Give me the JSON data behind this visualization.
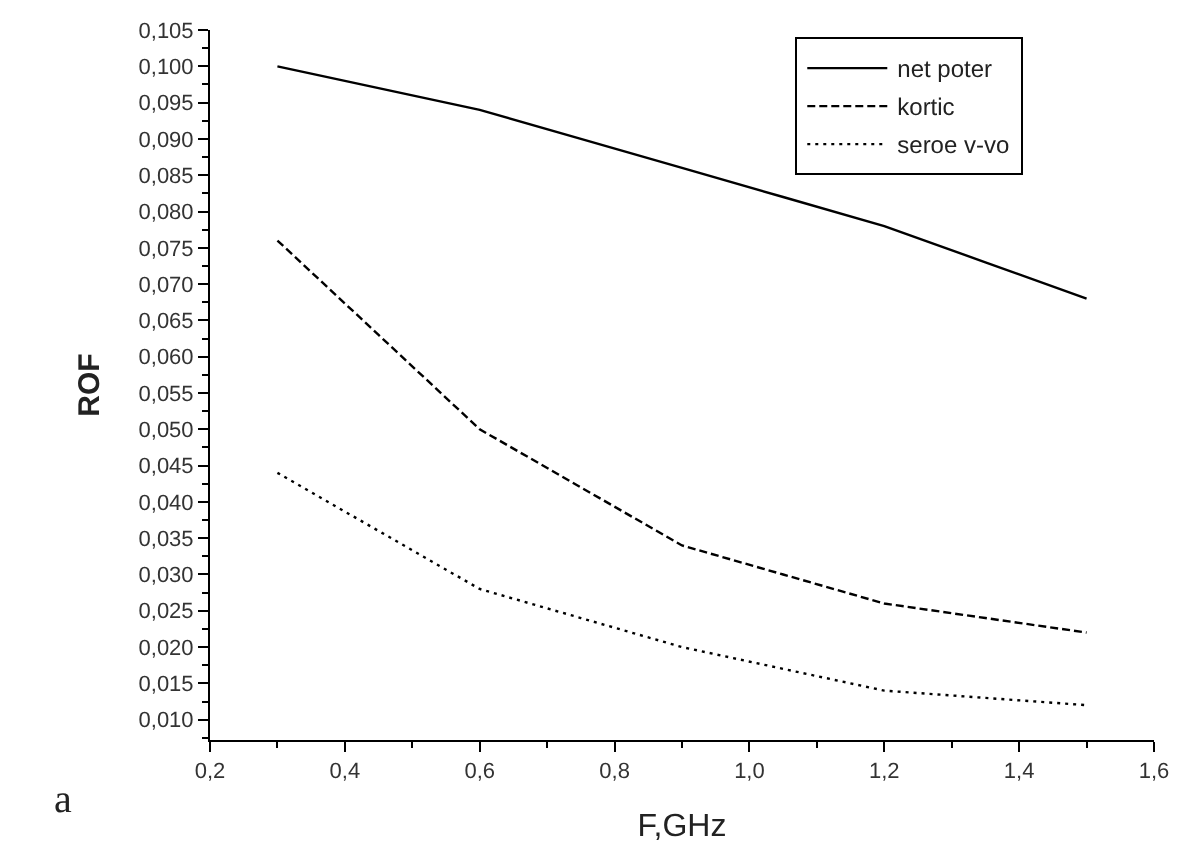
{
  "chart_data": {
    "type": "line",
    "xlabel": "F,GHz",
    "ylabel": "ROF",
    "annotations": [
      "a"
    ],
    "x": [
      0.3,
      0.45,
      0.6,
      0.75,
      0.9,
      1.05,
      1.2,
      1.35,
      1.5
    ],
    "series": [
      {
        "name": "net poter",
        "color": "#000000",
        "line_style": "solid",
        "values": [
          0.1,
          0.097,
          0.094,
          0.09,
          0.086,
          0.082,
          0.078,
          0.073,
          0.068
        ]
      },
      {
        "name": "kortic",
        "color": "#000000",
        "line_style": "dashed",
        "values": [
          0.076,
          0.063,
          0.05,
          0.042,
          0.034,
          0.03,
          0.026,
          0.024,
          0.022
        ]
      },
      {
        "name": "seroe v-vo",
        "color": "#000000",
        "line_style": "dotted",
        "values": [
          0.044,
          0.036,
          0.028,
          0.024,
          0.02,
          0.017,
          0.014,
          0.013,
          0.012
        ]
      }
    ],
    "xlim": [
      0.2,
      1.6
    ],
    "xticks": [
      {
        "value": 0.2,
        "label": "0,2"
      },
      {
        "value": 0.4,
        "label": "0,4"
      },
      {
        "value": 0.6,
        "label": "0,6"
      },
      {
        "value": 0.8,
        "label": "0,8"
      },
      {
        "value": 1.0,
        "label": "1,0"
      },
      {
        "value": 1.2,
        "label": "1,2"
      },
      {
        "value": 1.4,
        "label": "1,4"
      },
      {
        "value": 1.6,
        "label": "1,6"
      }
    ],
    "ylim": [
      0.0072,
      0.105
    ],
    "yticks": [
      {
        "value": 0.01,
        "label": "0,010"
      },
      {
        "value": 0.015,
        "label": "0,015"
      },
      {
        "value": 0.02,
        "label": "0,020"
      },
      {
        "value": 0.025,
        "label": "0,025"
      },
      {
        "value": 0.03,
        "label": "0,030"
      },
      {
        "value": 0.035,
        "label": "0,035"
      },
      {
        "value": 0.04,
        "label": "0,040"
      },
      {
        "value": 0.045,
        "label": "0,045"
      },
      {
        "value": 0.05,
        "label": "0,050"
      },
      {
        "value": 0.055,
        "label": "0,055"
      },
      {
        "value": 0.06,
        "label": "0,060"
      },
      {
        "value": 0.065,
        "label": "0,065"
      },
      {
        "value": 0.07,
        "label": "0,070"
      },
      {
        "value": 0.075,
        "label": "0,075"
      },
      {
        "value": 0.08,
        "label": "0,080"
      },
      {
        "value": 0.085,
        "label": "0,085"
      },
      {
        "value": 0.09,
        "label": "0,090"
      },
      {
        "value": 0.095,
        "label": "0,095"
      },
      {
        "value": 0.1,
        "label": "0,100"
      },
      {
        "value": 0.105,
        "label": "0,105"
      }
    ],
    "legend": "top right",
    "marker": "none"
  }
}
